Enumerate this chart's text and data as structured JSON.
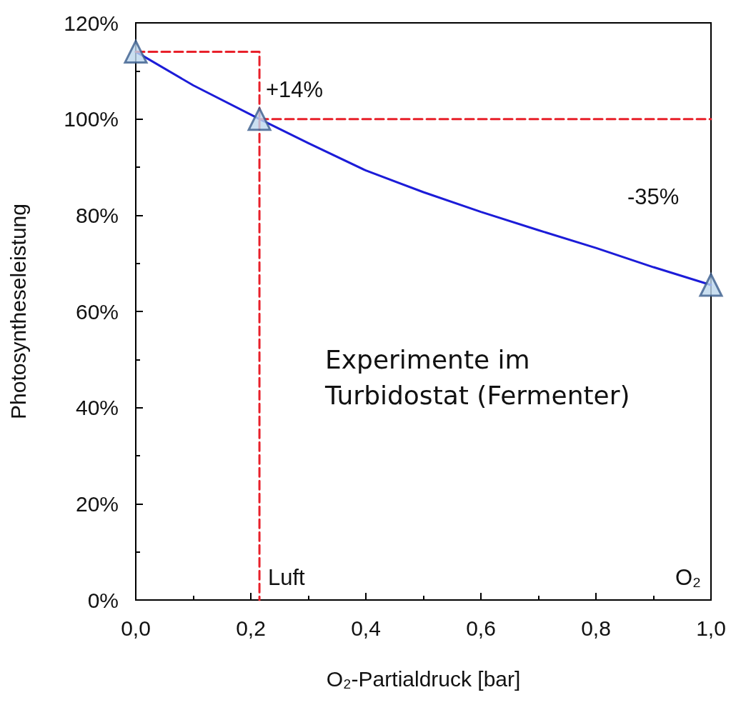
{
  "chart_data": {
    "type": "line",
    "xlabel": "O₂-Partialdruck [bar]",
    "ylabel": "Photosyntheseleistung",
    "xlim": [
      0,
      1
    ],
    "xticks": [
      {
        "value": 0,
        "label": "0,0"
      },
      {
        "value": 0.2,
        "label": "0,2"
      },
      {
        "value": 0.4,
        "label": "0,4"
      },
      {
        "value": 0.6,
        "label": "0,6"
      },
      {
        "value": 0.8,
        "label": "0,8"
      },
      {
        "value": 1,
        "label": "1,0"
      }
    ],
    "ylim": [
      0,
      120
    ],
    "yticks": [
      {
        "value": 0,
        "label": "0%"
      },
      {
        "value": 20,
        "label": "20%"
      },
      {
        "value": 40,
        "label": "40%"
      },
      {
        "value": 60,
        "label": "60%"
      },
      {
        "value": 80,
        "label": "80%"
      },
      {
        "value": 100,
        "label": "100%"
      },
      {
        "value": 120,
        "label": "120%"
      }
    ],
    "grid": false,
    "series": [
      {
        "color": "#1c1cd8",
        "marker": "none",
        "line_style": "solid",
        "x": [
          0,
          0.1,
          0.215,
          0.3,
          0.4,
          0.5,
          0.6,
          0.7,
          0.8,
          0.9,
          1.0
        ],
        "values": [
          114,
          107,
          100,
          95,
          89.3,
          84.8,
          80.7,
          76.9,
          73.2,
          69.2,
          65.5
        ]
      },
      {
        "type": "scatter",
        "color": "#bdd7ee",
        "marker": "triangle",
        "x": [
          0,
          0.215,
          1.0
        ],
        "values": [
          114,
          100,
          65.5
        ]
      },
      {
        "color": "#e8202a",
        "marker": "none",
        "line_style": "dashed",
        "x": [
          0,
          0.215,
          0.215
        ],
        "values": [
          114,
          114,
          0
        ]
      },
      {
        "color": "#e8202a",
        "marker": "none",
        "line_style": "dashed",
        "x": [
          0.215,
          1.0
        ],
        "values": [
          100,
          100
        ]
      }
    ],
    "annotations": [
      "+14%",
      "-35%",
      "Luft",
      "O₂",
      "Experimente im\nTurbidostat (Fermenter)"
    ]
  }
}
